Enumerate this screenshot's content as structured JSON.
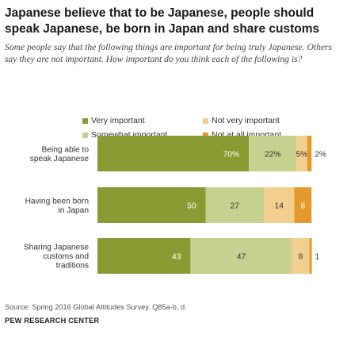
{
  "header": {
    "title": "Japanese believe that to be Japanese, people should speak Japanese, be born in Japan and share customs",
    "subtitle": "Some people say that the following things are important for being truly Japanese. Others say they are not important. How important do you think each of the following is?"
  },
  "colors": {
    "very": "#8b9b33",
    "somewhat": "#c6d08f",
    "not_very": "#f2cf8c",
    "not_at_all": "#e49a2a"
  },
  "chart_data": {
    "type": "bar",
    "orientation": "horizontal",
    "stacked": true,
    "categories": [
      "Being able to speak Japanese",
      "Having been born in Japan",
      "Sharing Japanese customs and traditions"
    ],
    "category_lines": [
      [
        "Being able to",
        "speak Japanese"
      ],
      [
        "Having been born",
        "in Japan"
      ],
      [
        "Sharing Japanese",
        "customs and",
        "traditions"
      ]
    ],
    "series": [
      {
        "name": "Very important",
        "values": [
          70,
          50,
          43
        ],
        "labels": [
          "70%",
          "50",
          "43"
        ]
      },
      {
        "name": "Somewhat important",
        "values": [
          22,
          27,
          47
        ],
        "labels": [
          "22%",
          "27",
          "47"
        ]
      },
      {
        "name": "Not very important",
        "values": [
          5,
          14,
          8
        ],
        "labels": [
          "5%",
          "14",
          "8"
        ]
      },
      {
        "name": "Not at all important",
        "values": [
          2,
          8,
          1
        ],
        "labels": [
          "2%",
          "8",
          "1"
        ]
      }
    ],
    "legend_position": "top",
    "grid": false
  },
  "footer": {
    "source": "Source: Spring 2016 Global Attitudes Survey. Q85a-b, d.",
    "org": "PEW RESEARCH CENTER"
  }
}
